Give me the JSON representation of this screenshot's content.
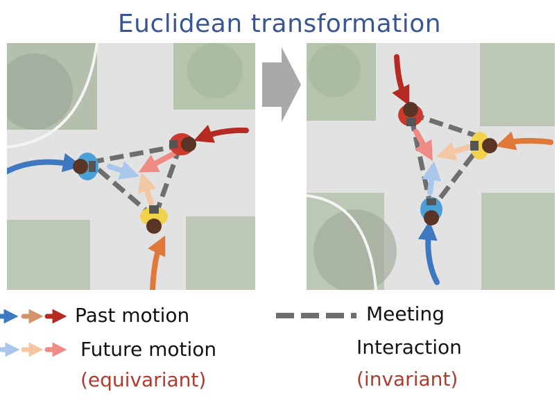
{
  "title": "Euclidean transformation",
  "colors": {
    "title": "#3a5592",
    "pedestrian_blue": "#3d78c1",
    "pedestrian_orange": "#e0783a",
    "pedestrian_red": "#b52a22",
    "meeting_line": "#6e6e6e",
    "future_blue": "#a9c7ea",
    "future_orange": "#f3c7a4",
    "future_red": "#ef8a84"
  },
  "legend": {
    "past_motion": "Past motion",
    "future_motion": "Future motion",
    "equivariant": "(equivariant)",
    "meeting": "Meeting",
    "interaction": "Interaction",
    "invariant": "(invariant)"
  }
}
